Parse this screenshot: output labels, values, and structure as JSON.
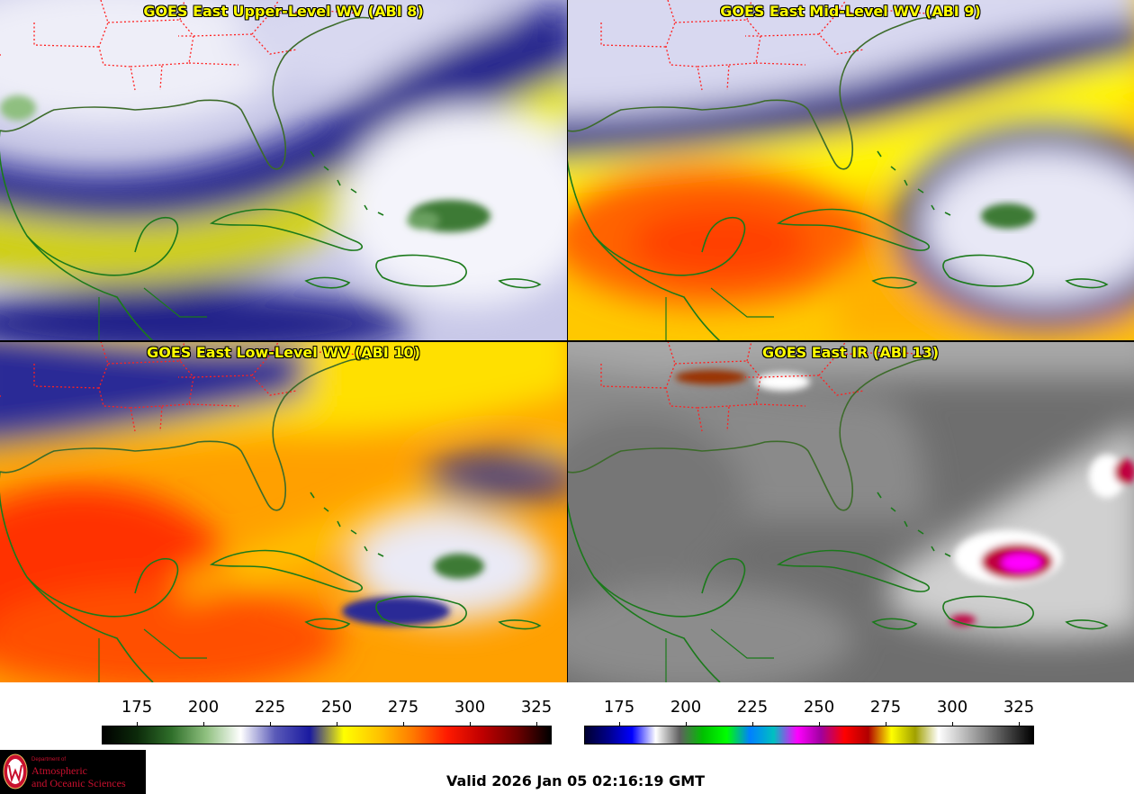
{
  "panels": [
    {
      "title": "GOES East Upper-Level WV (ABI 8)"
    },
    {
      "title": "GOES East Mid-Level WV (ABI 9)"
    },
    {
      "title": "GOES East Low-Level WV (ABI 10)"
    },
    {
      "title": "GOES East IR (ABI 13)"
    }
  ],
  "colorbars": {
    "wv": {
      "ticks": [
        "175",
        "200",
        "225",
        "250",
        "275",
        "300",
        "325"
      ],
      "stops": [
        "#000000",
        "#0c2a0a",
        "#2f6f2a",
        "#8fc07f",
        "#ffffff",
        "#5a5ab8",
        "#1a1aa0",
        "#ffff00",
        "#ffc400",
        "#ff7a00",
        "#ff1a00",
        "#c00000",
        "#700000",
        "#000000"
      ]
    },
    "ir": {
      "ticks": [
        "175",
        "200",
        "225",
        "250",
        "275",
        "300",
        "325"
      ],
      "stops": [
        "#000030",
        "#00008c",
        "#0000ff",
        "#ffffff",
        "#606060",
        "#00c000",
        "#00ff00",
        "#0080ff",
        "#00c0c0",
        "#ff00ff",
        "#a000a0",
        "#ff0000",
        "#b00000",
        "#ffff00",
        "#a0a000",
        "#ffffff",
        "#c0c0c0",
        "#808080",
        "#404040",
        "#000000"
      ]
    }
  },
  "footer": {
    "dept": "Department of",
    "line1": "Atmospheric",
    "line2": "and Oceanic Sciences",
    "valid": "Valid 2026 Jan 05 02:16:19 GMT"
  }
}
